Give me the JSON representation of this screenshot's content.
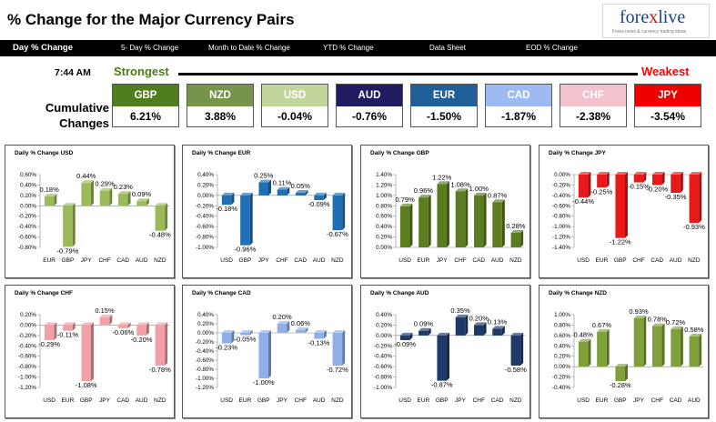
{
  "header": {
    "title": "% Change for the Major Currency Pairs"
  },
  "logo": {
    "brand_prefix": "fore",
    "brand_x": "x",
    "brand_suffix": "live",
    "tagline": "Forex news & currency trading ideas"
  },
  "nav": {
    "tabs": [
      {
        "label": "Day % Change",
        "active": true
      },
      {
        "label": "5- Day % Change",
        "active": false
      },
      {
        "label": "Month to Date % Change",
        "active": false
      },
      {
        "label": "YTD % Change",
        "active": false
      },
      {
        "label": "Data Sheet",
        "active": false
      },
      {
        "label": "EOD % Change",
        "active": false
      }
    ]
  },
  "summary": {
    "time": "7:44 AM",
    "strongest_label": "Strongest",
    "weakest_label": "Weakest",
    "cumulative_label": "Cumulative Changes",
    "currencies": [
      {
        "code": "GBP",
        "value": "6.21%",
        "color": "#4f7f1c"
      },
      {
        "code": "NZD",
        "value": "3.88%",
        "color": "#76944a"
      },
      {
        "code": "USD",
        "value": "-0.04%",
        "color": "#c2d69b"
      },
      {
        "code": "AUD",
        "value": "-0.76%",
        "color": "#211c60"
      },
      {
        "code": "EUR",
        "value": "-1.50%",
        "color": "#1f5f9a"
      },
      {
        "code": "CAD",
        "value": "-1.87%",
        "color": "#9dbaf2"
      },
      {
        "code": "CHF",
        "value": "-2.38%",
        "color": "#f2c3cf"
      },
      {
        "code": "JPY",
        "value": "-3.54%",
        "color": "#ef0000"
      }
    ]
  },
  "chart_data": [
    {
      "type": "bar",
      "title": "Daily % Change USD",
      "color": "#9bbb59",
      "categories": [
        "EUR",
        "GBP",
        "JPY",
        "CHF",
        "CAD",
        "AUD",
        "NZD"
      ],
      "values": [
        0.18,
        -0.79,
        0.44,
        0.29,
        0.23,
        0.09,
        -0.48
      ],
      "labels": [
        "0.18%",
        "-0.79%",
        "0.44%",
        "0.29%",
        "0.23%",
        "0.09%",
        "-0.48%"
      ],
      "ylim": [
        -0.8,
        0.6
      ],
      "ticks": [
        -0.8,
        -0.6,
        -0.4,
        -0.2,
        0.0,
        0.2,
        0.4,
        0.6
      ],
      "tick_labels": [
        "-0.80%",
        "-0.60%",
        "-0.40%",
        "-0.20%",
        "0.00%",
        "0.20%",
        "0.40%",
        "0.60%"
      ]
    },
    {
      "type": "bar",
      "title": "Daily % Change EUR",
      "color": "#1f6fb5",
      "categories": [
        "USD",
        "GBP",
        "JPY",
        "CHF",
        "CAD",
        "AUD",
        "NZD"
      ],
      "values": [
        -0.18,
        -0.96,
        0.25,
        0.11,
        0.05,
        -0.09,
        -0.67
      ],
      "labels": [
        "-0.18%",
        "-0.96%",
        "0.25%",
        "0.11%",
        "0.05%",
        "-0.09%",
        "-0.67%"
      ],
      "ylim": [
        -1.0,
        0.4
      ],
      "ticks": [
        -1.0,
        -0.8,
        -0.6,
        -0.4,
        -0.2,
        0.0,
        0.2,
        0.4
      ],
      "tick_labels": [
        "-1.00%",
        "-0.80%",
        "-0.60%",
        "-0.40%",
        "-0.20%",
        "0.00%",
        "0.20%",
        "0.40%"
      ]
    },
    {
      "type": "bar",
      "title": "Daily % Change GBP",
      "color": "#5c7d1f",
      "categories": [
        "USD",
        "EUR",
        "JPY",
        "CHF",
        "CAD",
        "AUD",
        "NZD"
      ],
      "values": [
        0.79,
        0.96,
        1.22,
        1.08,
        1.0,
        0.87,
        0.28
      ],
      "labels": [
        "0.79%",
        "0.96%",
        "1.22%",
        "1.08%",
        "1.00%",
        "0.87%",
        "0.28%"
      ],
      "ylim": [
        0.0,
        1.4
      ],
      "ticks": [
        0.0,
        0.2,
        0.4,
        0.6,
        0.8,
        1.0,
        1.2,
        1.4
      ],
      "tick_labels": [
        "0.00%",
        "0.20%",
        "0.40%",
        "0.60%",
        "0.80%",
        "1.00%",
        "1.20%",
        "1.40%"
      ]
    },
    {
      "type": "bar",
      "title": "Daily % Change JPY",
      "color": "#e81919",
      "categories": [
        "USD",
        "EUR",
        "GBP",
        "CHF",
        "CAD",
        "AUD",
        "NZD"
      ],
      "values": [
        -0.44,
        -0.25,
        -1.22,
        -0.15,
        -0.2,
        -0.35,
        -0.93
      ],
      "labels": [
        "-0.44%",
        "-0.25%",
        "-1.22%",
        "-0.15%",
        "-0.20%",
        "-0.35%",
        "-0.93%"
      ],
      "ylim": [
        -1.4,
        0.0
      ],
      "ticks": [
        -1.4,
        -1.2,
        -1.0,
        -0.8,
        -0.6,
        -0.4,
        -0.2,
        0.0
      ],
      "tick_labels": [
        "-1.40%",
        "-1.20%",
        "-1.00%",
        "-0.80%",
        "-0.60%",
        "-0.40%",
        "-0.20%",
        "0.00%"
      ]
    },
    {
      "type": "bar",
      "title": "Daily % Change CHF",
      "color": "#f0a0a6",
      "categories": [
        "USD",
        "EUR",
        "GBP",
        "JPY",
        "CAD",
        "AUD",
        "NZD"
      ],
      "values": [
        -0.29,
        -0.11,
        -1.08,
        0.15,
        -0.06,
        -0.2,
        -0.78
      ],
      "labels": [
        "-0.29%",
        "-0.11%",
        "-1.08%",
        "0.15%",
        "-0.06%",
        "-0.20%",
        "-0.78%"
      ],
      "ylim": [
        -1.2,
        0.2
      ],
      "ticks": [
        -1.2,
        -1.0,
        -0.8,
        -0.6,
        -0.4,
        -0.2,
        0.0,
        0.2
      ],
      "tick_labels": [
        "-1.20%",
        "-1.00%",
        "-0.80%",
        "-0.60%",
        "-0.40%",
        "-0.20%",
        "0.00%",
        "0.20%"
      ]
    },
    {
      "type": "bar",
      "title": "Daily % Change CAD",
      "color": "#8eb0e8",
      "categories": [
        "USD",
        "EUR",
        "GBP",
        "JPY",
        "CHF",
        "AUD",
        "NZD"
      ],
      "values": [
        -0.23,
        -0.05,
        -1.0,
        0.2,
        0.06,
        -0.13,
        -0.72
      ],
      "labels": [
        "-0.23%",
        "-0.05%",
        "-1.00%",
        "0.20%",
        "0.06%",
        "-0.13%",
        "-0.72%"
      ],
      "ylim": [
        -1.2,
        0.4
      ],
      "ticks": [
        -1.2,
        -1.0,
        -0.8,
        -0.6,
        -0.4,
        -0.2,
        0.0,
        0.2,
        0.4
      ],
      "tick_labels": [
        "-1.20%",
        "-1.00%",
        "-0.80%",
        "-0.60%",
        "-0.40%",
        "-0.20%",
        "0.00%",
        "0.20%",
        "0.40%"
      ]
    },
    {
      "type": "bar",
      "title": "Daily % Change AUD",
      "color": "#1e3a6b",
      "categories": [
        "USD",
        "EUR",
        "GBP",
        "JPY",
        "CHF",
        "CAD",
        "NZD"
      ],
      "values": [
        -0.09,
        0.09,
        -0.87,
        0.35,
        0.2,
        0.13,
        -0.58
      ],
      "labels": [
        "-0.09%",
        "0.09%",
        "-0.87%",
        "0.35%",
        "0.20%",
        "0.13%",
        "-0.58%"
      ],
      "ylim": [
        -1.0,
        0.4
      ],
      "ticks": [
        -1.0,
        -0.8,
        -0.6,
        -0.4,
        -0.2,
        0.0,
        0.2,
        0.4
      ],
      "tick_labels": [
        "-1.00%",
        "-0.80%",
        "-0.60%",
        "-0.40%",
        "-0.20%",
        "0.00%",
        "0.20%",
        "0.40%"
      ]
    },
    {
      "type": "bar",
      "title": "Daily % Change NZD",
      "color": "#7fa03a",
      "categories": [
        "USD",
        "EUR",
        "GBP",
        "JPY",
        "CHF",
        "CAD",
        "AUD"
      ],
      "values": [
        0.48,
        0.67,
        -0.28,
        0.93,
        0.78,
        0.72,
        0.58
      ],
      "labels": [
        "0.48%",
        "0.67%",
        "-0.28%",
        "0.93%",
        "0.78%",
        "0.72%",
        "0.58%"
      ],
      "ylim": [
        -0.4,
        1.0
      ],
      "ticks": [
        -0.4,
        -0.2,
        0.0,
        0.2,
        0.4,
        0.6,
        0.8,
        1.0
      ],
      "tick_labels": [
        "-0.40%",
        "-0.20%",
        "0.00%",
        "0.20%",
        "0.40%",
        "0.60%",
        "0.80%",
        "1.00%"
      ]
    }
  ]
}
